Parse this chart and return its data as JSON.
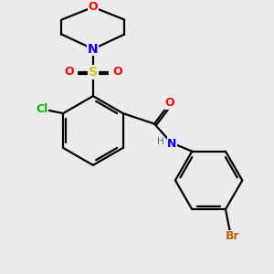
{
  "background_color": "#ebebeb",
  "bond_color": "#000000",
  "atom_colors": {
    "O": "#ff0000",
    "N": "#0000ff",
    "S": "#cccc00",
    "Cl": "#00bb00",
    "Br": "#bb6600",
    "C": "#000000",
    "H": "#666666"
  },
  "figsize": [
    3.0,
    3.0
  ],
  "dpi": 100,
  "lw": 1.6
}
